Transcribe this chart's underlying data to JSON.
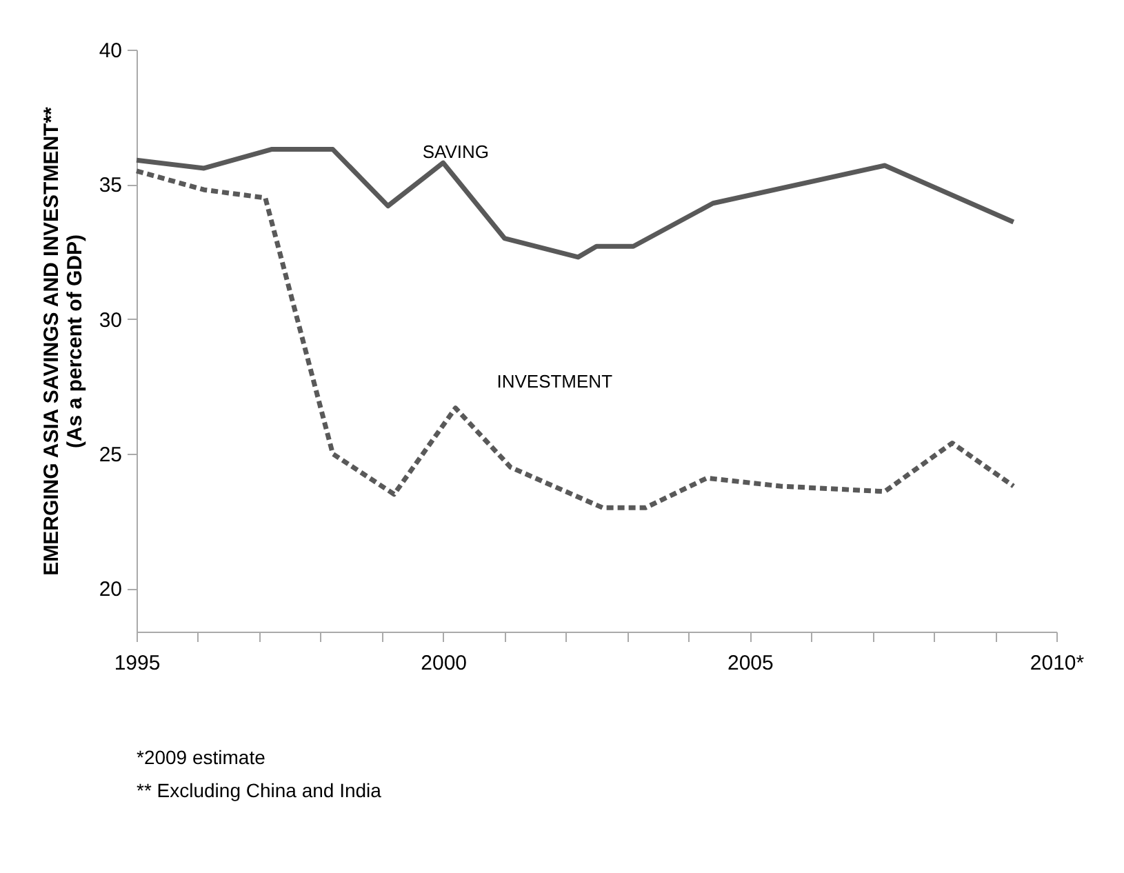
{
  "chart_data": {
    "type": "line",
    "ylabel": "EMERGING ASIA SAVINGS AND INVESTMENT**\n(As a percent of GDP)",
    "xlim": [
      1995,
      2010
    ],
    "xticks": [
      1995,
      {
        "value": 1996,
        "label": null
      },
      {
        "value": 1997,
        "label": null
      },
      {
        "value": 1998,
        "label": null
      },
      {
        "value": 1999,
        "label": null
      },
      2000,
      {
        "value": 2001,
        "label": null
      },
      {
        "value": 2002,
        "label": null
      },
      {
        "value": 2003,
        "label": null
      },
      {
        "value": 2004,
        "label": null
      },
      2005,
      {
        "value": 2006,
        "label": null
      },
      {
        "value": 2007,
        "label": null
      },
      {
        "value": 2008,
        "label": null
      },
      {
        "value": 2009,
        "label": null
      },
      {
        "value": 2010,
        "label": "2010*"
      }
    ],
    "ylim": [
      18.4,
      40
    ],
    "yticks": [
      20,
      25,
      30,
      35,
      40
    ],
    "grid": false,
    "marker": "none",
    "series": [
      {
        "name": "SAVING",
        "color": "#595959",
        "line_style": "solid",
        "x": [
          1995,
          1996.1,
          1997.2,
          1998.2,
          1999.1,
          2000,
          2001,
          2002.2,
          2002.5,
          2003.1,
          2004.4,
          2007.2,
          2009.3
        ],
        "values": [
          35.9,
          35.6,
          36.3,
          36.3,
          34.2,
          35.8,
          33.0,
          32.3,
          32.7,
          32.7,
          34.3,
          35.7,
          33.6
        ]
      },
      {
        "name": "INVESTMENT",
        "color": "#595959",
        "line_style": "dashed",
        "x": [
          1995,
          1996.1,
          1997.1,
          1998.2,
          1999.2,
          2000.2,
          2001.1,
          2002.6,
          2003.3,
          2004.3,
          2005.5,
          2007.2,
          2008.3,
          2009.3
        ],
        "values": [
          35.5,
          34.8,
          34.5,
          25.0,
          23.5,
          26.7,
          24.5,
          23.0,
          23.0,
          24.1,
          23.8,
          23.6,
          25.4,
          23.8
        ]
      }
    ],
    "annotations": [
      "*2009 estimate",
      "** Excluding China and India"
    ]
  }
}
